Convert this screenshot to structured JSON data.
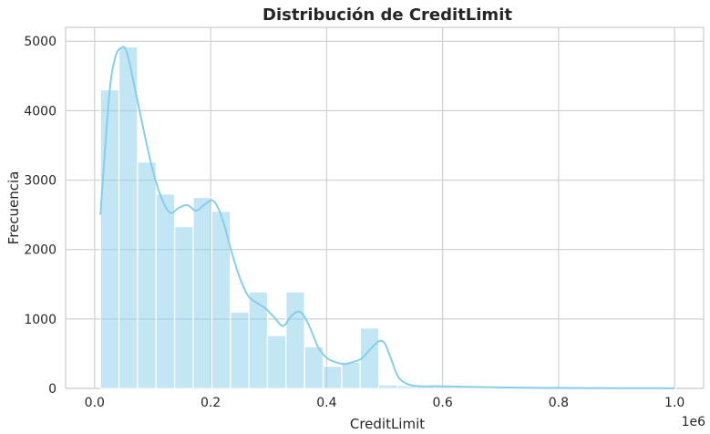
{
  "chart_data": {
    "type": "bar",
    "title": "Distribución de CreditLimit",
    "xlabel": "CreditLimit",
    "ylabel": "Frecuencia",
    "x_offset_label": "1e6",
    "xlim": [
      -0.05,
      1.05
    ],
    "ylim": [
      0,
      5200
    ],
    "x_ticks": [
      0.0,
      0.2,
      0.4,
      0.6,
      0.8,
      1.0
    ],
    "x_tick_labels": [
      "0.0",
      "0.2",
      "0.4",
      "0.6",
      "0.8",
      "1.0"
    ],
    "y_ticks": [
      0,
      1000,
      2000,
      3000,
      4000,
      5000
    ],
    "y_tick_labels": [
      "0",
      "1000",
      "2000",
      "3000",
      "4000",
      "5000"
    ],
    "grid": true,
    "bar_color": "#87ceeb",
    "line_color": "#87ceeb",
    "bin_edges": [
      0.01,
      0.042,
      0.074,
      0.106,
      0.138,
      0.17,
      0.202,
      0.234,
      0.266,
      0.298,
      0.33,
      0.362,
      0.394,
      0.426,
      0.458,
      0.49,
      0.522,
      0.554,
      0.586,
      0.618,
      0.65,
      0.682,
      0.714,
      0.746,
      0.778,
      0.81,
      0.842,
      0.874,
      0.906,
      0.938,
      0.97,
      1.002
    ],
    "counts": [
      4300,
      4920,
      3260,
      2800,
      2330,
      2750,
      2550,
      1100,
      1390,
      760,
      1390,
      600,
      320,
      380,
      870,
      50,
      40,
      30,
      25,
      20,
      18,
      15,
      12,
      10,
      8,
      6,
      5,
      4,
      3,
      2,
      2
    ],
    "kde": {
      "x": [
        0.01,
        0.025,
        0.035,
        0.045,
        0.055,
        0.07,
        0.085,
        0.1,
        0.115,
        0.13,
        0.145,
        0.16,
        0.175,
        0.19,
        0.205,
        0.22,
        0.235,
        0.25,
        0.265,
        0.28,
        0.295,
        0.31,
        0.325,
        0.34,
        0.355,
        0.37,
        0.385,
        0.4,
        0.415,
        0.43,
        0.445,
        0.46,
        0.475,
        0.49,
        0.5,
        0.51,
        0.525,
        0.55,
        0.6,
        0.65,
        0.7,
        0.75,
        0.8,
        0.85,
        0.9,
        0.95,
        1.0
      ],
      "y": [
        2500,
        4200,
        4750,
        4900,
        4850,
        4300,
        3700,
        3150,
        2750,
        2530,
        2600,
        2640,
        2560,
        2650,
        2700,
        2450,
        2000,
        1600,
        1330,
        1230,
        1150,
        1020,
        900,
        1050,
        1100,
        900,
        600,
        440,
        380,
        350,
        380,
        430,
        560,
        680,
        650,
        450,
        150,
        40,
        30,
        22,
        15,
        10,
        8,
        5,
        4,
        3,
        2
      ]
    }
  }
}
